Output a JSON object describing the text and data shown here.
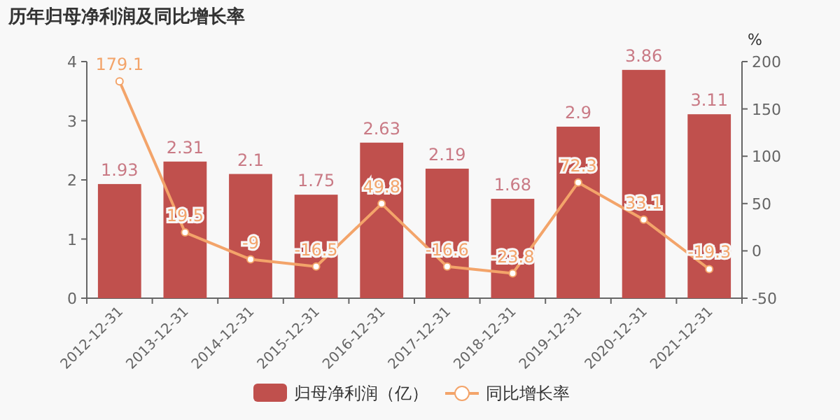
{
  "chart_data": {
    "type": "bar",
    "title": "历年归母净利润及同比增长率",
    "categories": [
      "2012-12-31",
      "2013-12-31",
      "2014-12-31",
      "2015-12-31",
      "2016-12-31",
      "2017-12-31",
      "2018-12-31",
      "2019-12-31",
      "2020-12-31",
      "2021-12-31"
    ],
    "series": [
      {
        "name": "归母净利润（亿）",
        "color": "#c0504d",
        "values": [
          1.93,
          2.31,
          2.1,
          1.75,
          2.63,
          2.19,
          1.68,
          2.9,
          3.86,
          3.11
        ]
      },
      {
        "name": "同比增长率",
        "type": "line",
        "axis": "y2",
        "marker": "circle",
        "color": "#f3a46a",
        "values": [
          179.1,
          19.5,
          -9,
          -16.5,
          49.8,
          -16.6,
          -23.8,
          72.3,
          33.1,
          -19.3
        ]
      }
    ],
    "ylim": [
      0,
      4
    ],
    "yticks": [
      0,
      1,
      2,
      3,
      4
    ],
    "y2lim": [
      -50,
      200
    ],
    "y2ticks": [
      -50,
      0,
      50,
      100,
      150,
      200
    ],
    "y2label": "%",
    "legend": "bottom",
    "data_labels": true,
    "grid": false
  }
}
